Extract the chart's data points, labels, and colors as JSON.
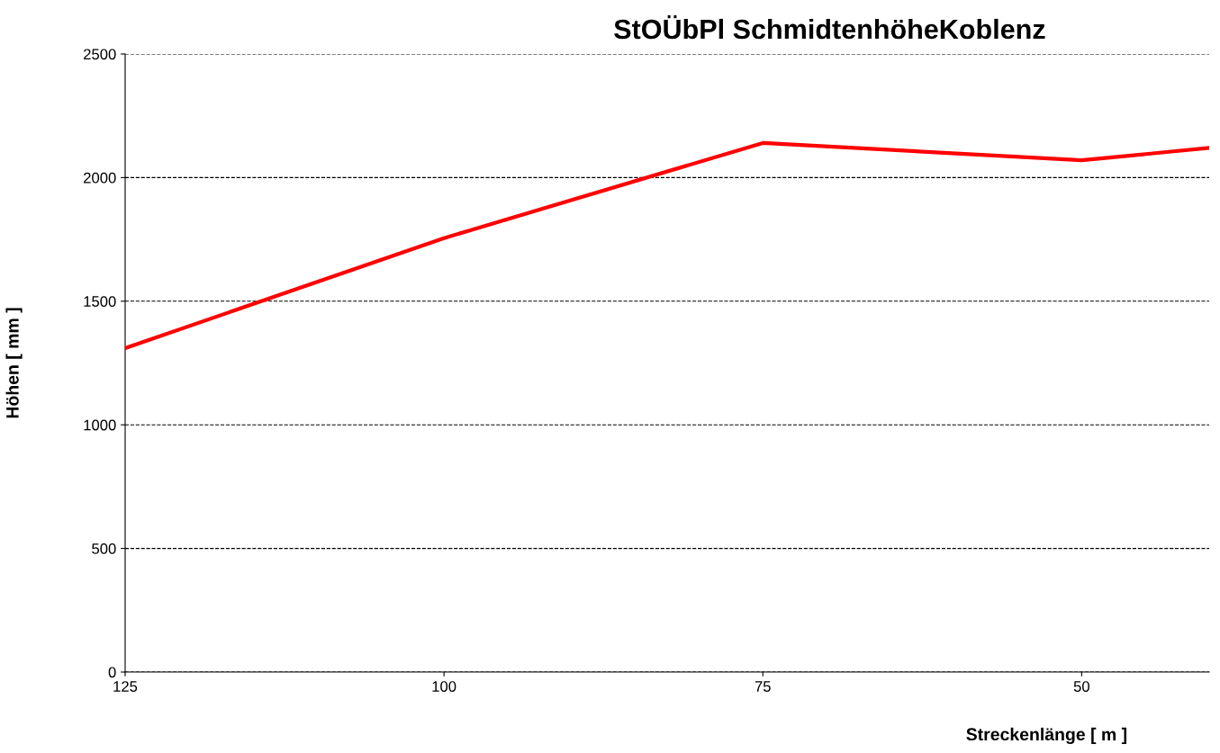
{
  "chart_data": {
    "type": "line",
    "title": "StOÜbPl SchmidtenhöheKoblenz",
    "xlabel": "Streckenlänge [ m ]",
    "ylabel": "Höhen [ mm ]",
    "x": [
      125,
      100,
      75,
      50,
      40
    ],
    "series": [
      {
        "color": "#ff0000",
        "values": [
          1310,
          1755,
          2140,
          2070,
          2120
        ]
      }
    ],
    "xlim": [
      125,
      40
    ],
    "xticks": [
      125,
      100,
      75,
      50
    ],
    "ylim": [
      0,
      2500
    ],
    "yticks": [
      0,
      500,
      1000,
      1500,
      2000,
      2500
    ],
    "grid": "y",
    "line_style": "solid",
    "marker": "none"
  }
}
